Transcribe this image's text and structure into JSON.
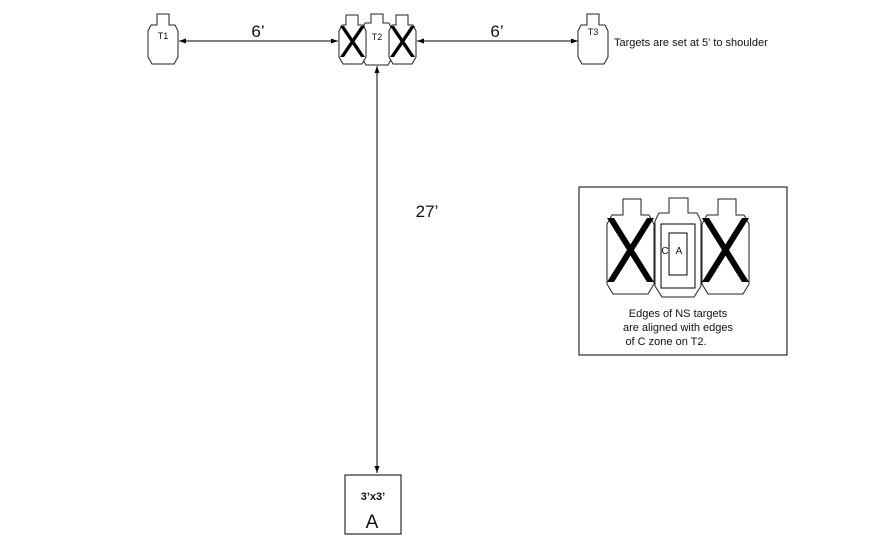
{
  "targets": {
    "t1_label": "T1",
    "t2_label": "T2",
    "t3_label": "T3",
    "note": "Targets are set at 5' to shoulder"
  },
  "dimensions": {
    "left_distance": "6’",
    "right_distance": "6’",
    "downrange_distance": "27’"
  },
  "shooting_box": {
    "size": "3’x3’",
    "position": "A"
  },
  "inset": {
    "c_zone_label": "C",
    "a_zone_label": "A",
    "caption_line1": "Edges of NS targets",
    "caption_line2": "are aligned with edges",
    "caption_line3": "of C zone on T2."
  },
  "colors": {
    "line": "#000000",
    "no_shoot_marker": "#000000",
    "target_fill": "#ffffff"
  }
}
